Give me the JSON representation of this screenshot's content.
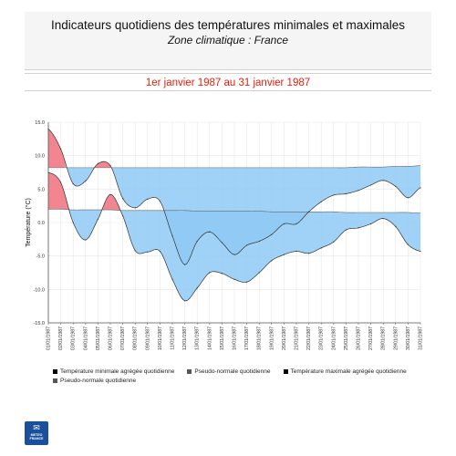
{
  "header": {
    "title": "Indicateurs quotidiens des températures minimales et maximales",
    "subtitle": "Zone climatique : France"
  },
  "period": "1er janvier 1987 au 31 janvier 1987",
  "legend": [
    {
      "label": "Température minimale agrégée quotidienne",
      "color": "#000000"
    },
    {
      "label": "Pseudo-normale quotidienne",
      "color": "#555555"
    },
    {
      "label": "Température maximale agrégée quotidienne",
      "color": "#000000"
    },
    {
      "label": "Pseudo-normale quotidienne",
      "color": "#555555"
    }
  ],
  "logo": {
    "mark": "✉",
    "line1": "METEO",
    "line2": "FRANCE"
  },
  "colors": {
    "cold": "#8ecaf5",
    "warm": "#f0808a",
    "line": "#333333",
    "normal": "#666666",
    "grid": "#e6e6e6"
  },
  "chart_data": {
    "type": "area",
    "ylabel": "Température (°C)",
    "ylim": [
      -15.0,
      15.0
    ],
    "yticks": [
      -15.0,
      -10.0,
      -5.0,
      0.0,
      5.0,
      10.0,
      15.0
    ],
    "grid": true,
    "legend_position": "bottom",
    "categories": [
      "01/01/1987",
      "02/01/1987",
      "03/01/1987",
      "04/01/1987",
      "05/01/1987",
      "06/01/1987",
      "07/01/1987",
      "08/01/1987",
      "09/01/1987",
      "10/01/1987",
      "11/01/1987",
      "12/01/1987",
      "13/01/1987",
      "14/01/1987",
      "15/01/1987",
      "16/01/1987",
      "17/01/1987",
      "18/01/1987",
      "19/01/1987",
      "20/01/1987",
      "21/01/1987",
      "22/01/1987",
      "23/01/1987",
      "24/01/1987",
      "25/01/1987",
      "26/01/1987",
      "27/01/1987",
      "28/01/1987",
      "29/01/1987",
      "30/01/1987",
      "31/01/1987"
    ],
    "series": [
      {
        "name": "Température maximale agrégée quotidienne",
        "values": [
          14.0,
          11.0,
          5.8,
          6.2,
          8.8,
          8.5,
          3.6,
          2.2,
          3.5,
          3.2,
          -2.0,
          -6.3,
          -2.8,
          -1.4,
          -3.0,
          -4.8,
          -3.4,
          -2.8,
          -1.8,
          -0.2,
          -0.2,
          1.6,
          3.1,
          4.1,
          4.3,
          4.8,
          5.6,
          6.3,
          5.4,
          3.7,
          5.2
        ]
      },
      {
        "name": "Pseudo-normale quotidienne",
        "values": [
          8.2,
          8.2,
          8.2,
          8.2,
          8.2,
          8.2,
          8.2,
          8.2,
          8.2,
          8.2,
          8.2,
          8.2,
          8.2,
          8.2,
          8.2,
          8.2,
          8.2,
          8.2,
          8.2,
          8.2,
          8.2,
          8.2,
          8.2,
          8.2,
          8.2,
          8.3,
          8.3,
          8.3,
          8.4,
          8.4,
          8.5
        ]
      },
      {
        "name": "Température minimale agrégée quotidienne",
        "values": [
          7.5,
          6.0,
          0.0,
          -2.6,
          0.5,
          4.2,
          1.0,
          -4.2,
          -4.4,
          -4.3,
          -8.5,
          -11.7,
          -9.8,
          -7.5,
          -7.6,
          -8.5,
          -8.9,
          -7.5,
          -5.7,
          -4.8,
          -4.3,
          -4.6,
          -3.8,
          -2.9,
          -1.1,
          -0.8,
          -0.2,
          0.6,
          -0.6,
          -3.3,
          -4.3
        ]
      },
      {
        "name": "Pseudo-normale quotidienne",
        "values": [
          2.0,
          2.0,
          1.9,
          1.9,
          1.9,
          1.9,
          1.8,
          1.8,
          1.8,
          1.8,
          1.8,
          1.8,
          1.7,
          1.7,
          1.7,
          1.7,
          1.7,
          1.7,
          1.6,
          1.6,
          1.6,
          1.6,
          1.6,
          1.6,
          1.5,
          1.5,
          1.5,
          1.5,
          1.5,
          1.5,
          1.4
        ]
      }
    ]
  }
}
